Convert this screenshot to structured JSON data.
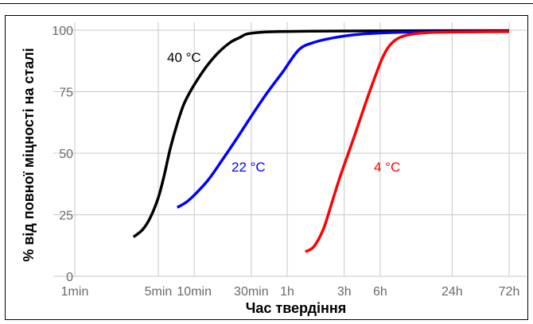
{
  "chart_data": {
    "type": "line",
    "title": "",
    "xlabel": "Час твердіння",
    "ylabel": "% від повної міцності на сталі",
    "x_scale": "log",
    "x_unit": "minutes",
    "x_ticks": [
      {
        "label": "1min",
        "minutes": 1
      },
      {
        "label": "5min",
        "minutes": 5
      },
      {
        "label": "10min",
        "minutes": 10
      },
      {
        "label": "30min",
        "minutes": 30
      },
      {
        "label": "1h",
        "minutes": 60
      },
      {
        "label": "3h",
        "minutes": 180
      },
      {
        "label": "6h",
        "minutes": 360
      },
      {
        "label": "24h",
        "minutes": 1440
      },
      {
        "label": "72h",
        "minutes": 4320
      }
    ],
    "y_ticks": [
      0,
      25,
      50,
      75,
      100
    ],
    "ylim": [
      0,
      100
    ],
    "grid": true,
    "series": [
      {
        "name": "40 °C",
        "color": "#000000",
        "points": [
          [
            3.1,
            16
          ],
          [
            3.7,
            19
          ],
          [
            4.3,
            24
          ],
          [
            5.0,
            32
          ],
          [
            5.6,
            41
          ],
          [
            6.3,
            52
          ],
          [
            7.2,
            62
          ],
          [
            8.2,
            70
          ],
          [
            9.5,
            76
          ],
          [
            11,
            81
          ],
          [
            13,
            86
          ],
          [
            16,
            91
          ],
          [
            20,
            95
          ],
          [
            24,
            97
          ],
          [
            28,
            98.5
          ],
          [
            40,
            99.3
          ],
          [
            100,
            99.6
          ],
          [
            300,
            99.7
          ],
          [
            1000,
            99.8
          ],
          [
            4320,
            99.8
          ]
        ]
      },
      {
        "name": "22 °C",
        "color": "#0000ff",
        "points": [
          [
            7.2,
            28
          ],
          [
            8.5,
            30
          ],
          [
            10,
            33
          ],
          [
            13,
            39
          ],
          [
            17,
            47
          ],
          [
            22,
            55
          ],
          [
            30,
            65
          ],
          [
            40,
            74
          ],
          [
            55,
            83
          ],
          [
            75,
            92
          ],
          [
            100,
            95
          ],
          [
            150,
            97
          ],
          [
            250,
            98.4
          ],
          [
            500,
            99.1
          ],
          [
            1000,
            99.3
          ],
          [
            4320,
            99.5
          ]
        ]
      },
      {
        "name": "4 °C",
        "color": "#ff0000",
        "points": [
          [
            85,
            10
          ],
          [
            100,
            12
          ],
          [
            120,
            19
          ],
          [
            140,
            29
          ],
          [
            165,
            40
          ],
          [
            195,
            50
          ],
          [
            230,
            60
          ],
          [
            270,
            70
          ],
          [
            320,
            80
          ],
          [
            370,
            88
          ],
          [
            420,
            93
          ],
          [
            500,
            96.5
          ],
          [
            650,
            98.3
          ],
          [
            1000,
            99.1
          ],
          [
            1800,
            99.3
          ],
          [
            4320,
            99.4
          ]
        ]
      }
    ]
  }
}
